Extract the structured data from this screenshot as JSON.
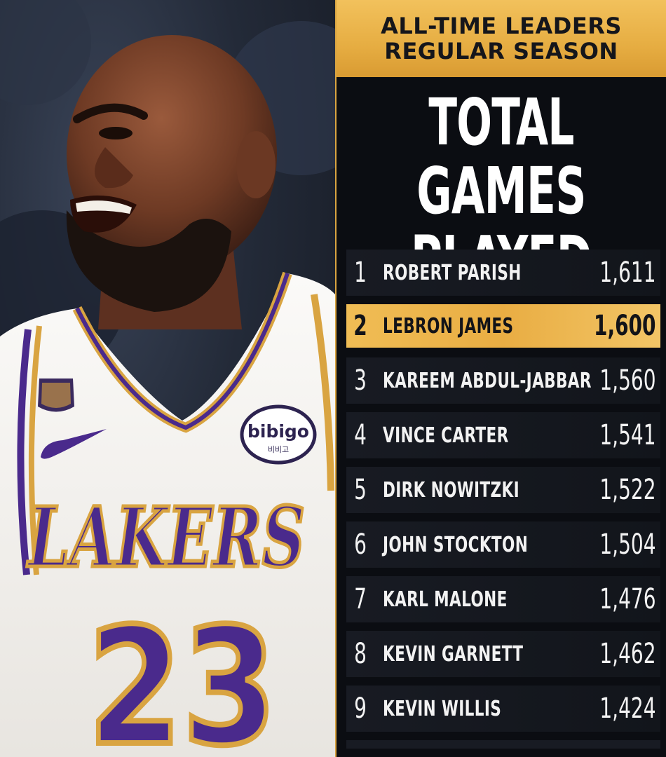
{
  "header": {
    "line1": "ALL-TIME LEADERS",
    "line2": "REGULAR SEASON"
  },
  "stat_title": {
    "line1": "TOTAL",
    "line2": "GAMES PLAYED"
  },
  "leaders": [
    {
      "rank": "1",
      "name": "ROBERT PARISH",
      "value": "1,611"
    },
    {
      "rank": "2",
      "name": "LEBRON JAMES",
      "value": "1,600",
      "highlight": true
    },
    {
      "rank": "3",
      "name": "KAREEM ABDUL-JABBAR",
      "value": "1,560"
    },
    {
      "rank": "4",
      "name": "VINCE CARTER",
      "value": "1,541"
    },
    {
      "rank": "5",
      "name": "DIRK NOWITZKI",
      "value": "1,522"
    },
    {
      "rank": "6",
      "name": "JOHN STOCKTON",
      "value": "1,504"
    },
    {
      "rank": "7",
      "name": "KARL MALONE",
      "value": "1,476"
    },
    {
      "rank": "8",
      "name": "KEVIN GARNETT",
      "value": "1,462"
    },
    {
      "rank": "9",
      "name": "KEVIN WILLIS",
      "value": "1,424"
    }
  ],
  "photo": {
    "jersey_team": "LAKERS",
    "jersey_number": "23",
    "patch_text": "bibigo",
    "patch_subtext": "비비고",
    "logo_icon": "swoosh-icon",
    "anniversary_patch_icon": "anniversary-patch-icon"
  },
  "colors": {
    "gold": "#e9ad43",
    "board_bg": "#0b0d12",
    "row_bg": "#181b23",
    "lakers_purple": "#4a2a8c",
    "jersey_white": "#f4f2ef"
  }
}
